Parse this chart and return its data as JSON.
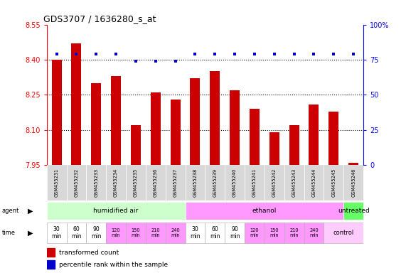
{
  "title": "GDS3707 / 1636280_s_at",
  "samples": [
    "GSM455231",
    "GSM455232",
    "GSM455233",
    "GSM455234",
    "GSM455235",
    "GSM455236",
    "GSM455237",
    "GSM455238",
    "GSM455239",
    "GSM455240",
    "GSM455241",
    "GSM455242",
    "GSM455243",
    "GSM455244",
    "GSM455245",
    "GSM455246"
  ],
  "bar_values": [
    8.4,
    8.47,
    8.3,
    8.33,
    8.12,
    8.26,
    8.23,
    8.32,
    8.35,
    8.27,
    8.19,
    8.09,
    8.12,
    8.21,
    8.18,
    7.96
  ],
  "dot_values": [
    79,
    79,
    79,
    79,
    74,
    74,
    74,
    79,
    79,
    79,
    79,
    79,
    79,
    79,
    79,
    79
  ],
  "ylim_left": [
    7.95,
    8.55
  ],
  "ylim_right": [
    0,
    100
  ],
  "yticks_left": [
    7.95,
    8.1,
    8.25,
    8.4,
    8.55
  ],
  "yticks_right": [
    0,
    25,
    50,
    75,
    100
  ],
  "ytick_labels_left": [
    "7.95",
    "8.10",
    "8.25",
    "8.40",
    "8.55"
  ],
  "ytick_labels_right": [
    "0",
    "25",
    "50",
    "75",
    "100%"
  ],
  "bar_color": "#cc0000",
  "dot_color": "#0000cc",
  "agent_groups": [
    {
      "label": "humidified air",
      "start": 0,
      "end": 7,
      "color": "#ccffcc"
    },
    {
      "label": "ethanol",
      "start": 7,
      "end": 15,
      "color": "#ff99ff"
    },
    {
      "label": "untreated",
      "start": 15,
      "end": 16,
      "color": "#66ff66"
    }
  ],
  "time_labels_14": [
    "30\nmin",
    "60\nmin",
    "90\nmin",
    "120\nmin",
    "150\nmin",
    "210\nmin",
    "240\nmin",
    "30\nmin",
    "60\nmin",
    "90\nmin",
    "120\nmin",
    "150\nmin",
    "210\nmin",
    "240\nmin"
  ],
  "time_colors_14": [
    "#ffffff",
    "#ffffff",
    "#ffffff",
    "#ff99ff",
    "#ff99ff",
    "#ff99ff",
    "#ff99ff",
    "#ffffff",
    "#ffffff",
    "#ffffff",
    "#ff99ff",
    "#ff99ff",
    "#ff99ff",
    "#ff99ff"
  ],
  "time_last_label": "control",
  "time_last_color": "#ffccff",
  "legend_items": [
    {
      "color": "#cc0000",
      "label": "transformed count"
    },
    {
      "color": "#0000cc",
      "label": "percentile rank within the sample"
    }
  ]
}
